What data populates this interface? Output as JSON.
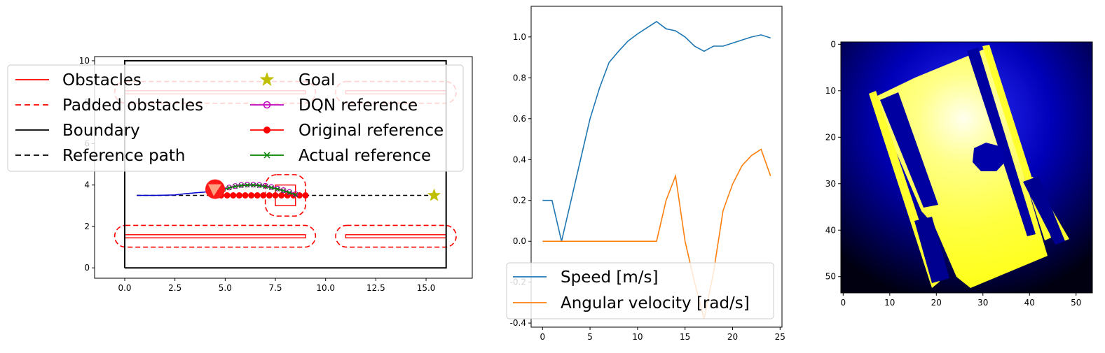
{
  "chart_data": [
    {
      "type": "line",
      "xlim": [
        -1.5,
        17.3
      ],
      "ylim": [
        -0.5,
        10.2
      ],
      "x_ticks": [
        "0.0",
        "2.5",
        "5.0",
        "7.5",
        "10.0",
        "12.5",
        "15.0"
      ],
      "y_ticks": [
        "0",
        "2",
        "4",
        "6",
        "8",
        "10"
      ],
      "boundary": [
        [
          0,
          0
        ],
        [
          16,
          0
        ],
        [
          16,
          10
        ],
        [
          0,
          10
        ],
        [
          0,
          0
        ]
      ],
      "obstacles": [
        {
          "x0": 0,
          "x1": 9,
          "y0": 1.45,
          "y1": 1.6
        },
        {
          "x0": 11,
          "x1": 16,
          "y0": 1.45,
          "y1": 1.6
        },
        {
          "x0": 0,
          "x1": 9,
          "y0": 8.4,
          "y1": 8.55
        },
        {
          "x0": 11,
          "x1": 16,
          "y0": 8.4,
          "y1": 8.55
        },
        {
          "x0": 7.5,
          "x1": 8.5,
          "y0": 3.0,
          "y1": 4.0
        }
      ],
      "padded_obstacles": [
        {
          "x0": -0.5,
          "x1": 9.5,
          "y0": 1.0,
          "y1": 2.05
        },
        {
          "x0": 10.5,
          "x1": 16.5,
          "y0": 1.0,
          "y1": 2.05
        },
        {
          "x0": -0.5,
          "x1": 9.5,
          "y0": 7.95,
          "y1": 9.0
        },
        {
          "x0": 10.5,
          "x1": 16.5,
          "y0": 7.95,
          "y1": 9.0
        },
        {
          "x0": 7.0,
          "x1": 9.0,
          "y0": 2.5,
          "y1": 4.5
        }
      ],
      "reference_path": [
        [
          0.6,
          3.5
        ],
        [
          15.4,
          3.5
        ]
      ],
      "goal": [
        15.4,
        3.5
      ],
      "robot": {
        "x": 4.5,
        "y": 3.8
      },
      "trajectory": [
        [
          0.6,
          3.5
        ],
        [
          1.5,
          3.5
        ],
        [
          2.5,
          3.52
        ],
        [
          3.0,
          3.58
        ],
        [
          3.5,
          3.62
        ],
        [
          4.0,
          3.66
        ],
        [
          4.5,
          3.75
        ]
      ],
      "dqn_reference": [
        [
          4.6,
          3.72
        ],
        [
          4.9,
          3.8
        ],
        [
          5.2,
          3.88
        ],
        [
          5.5,
          3.95
        ],
        [
          5.8,
          4.0
        ],
        [
          6.1,
          4.02
        ],
        [
          6.4,
          4.02
        ],
        [
          6.7,
          4.0
        ],
        [
          7.0,
          3.96
        ],
        [
          7.3,
          3.9
        ],
        [
          7.6,
          3.83
        ],
        [
          7.9,
          3.75
        ],
        [
          8.2,
          3.66
        ],
        [
          8.5,
          3.56
        ]
      ],
      "actual_reference": [
        [
          4.6,
          3.7
        ],
        [
          4.9,
          3.78
        ],
        [
          5.2,
          3.86
        ],
        [
          5.5,
          3.93
        ],
        [
          5.8,
          3.97
        ],
        [
          6.1,
          3.99
        ],
        [
          6.4,
          3.99
        ],
        [
          6.7,
          3.97
        ],
        [
          7.0,
          3.93
        ],
        [
          7.3,
          3.87
        ],
        [
          7.6,
          3.8
        ],
        [
          7.9,
          3.72
        ],
        [
          8.2,
          3.63
        ],
        [
          8.5,
          3.53
        ]
      ],
      "original_reference": [
        [
          4.8,
          3.5
        ],
        [
          5.1,
          3.5
        ],
        [
          5.4,
          3.5
        ],
        [
          5.7,
          3.5
        ],
        [
          6.0,
          3.5
        ],
        [
          6.3,
          3.5
        ],
        [
          6.6,
          3.5
        ],
        [
          6.9,
          3.5
        ],
        [
          7.2,
          3.5
        ],
        [
          7.5,
          3.5
        ],
        [
          7.8,
          3.5
        ],
        [
          8.1,
          3.5
        ],
        [
          8.4,
          3.5
        ],
        [
          8.7,
          3.5
        ],
        [
          9.0,
          3.5
        ]
      ],
      "legend": {
        "placement": "upper-center",
        "col1": [
          "Obstacles",
          "Padded obstacles",
          "Boundary",
          "Reference path"
        ],
        "col2": [
          "Goal",
          "DQN reference",
          "Original reference",
          "Actual reference"
        ]
      }
    },
    {
      "type": "line",
      "x": [
        0,
        1,
        2,
        3,
        4,
        5,
        6,
        7,
        8,
        9,
        10,
        11,
        12,
        13,
        14,
        15,
        16,
        17,
        18,
        19,
        20,
        21,
        22,
        23,
        24
      ],
      "xlim": [
        -1.2,
        25.2
      ],
      "ylim": [
        -0.42,
        1.15
      ],
      "x_ticks": [
        "0",
        "5",
        "10",
        "15",
        "20",
        "25"
      ],
      "y_ticks": [
        "-0.4",
        "-0.2",
        "0.0",
        "0.2",
        "0.4",
        "0.6",
        "0.8",
        "1.0"
      ],
      "series": [
        {
          "name": "Speed [m/s]",
          "color": "#1f77b4",
          "values": [
            0.2,
            0.2,
            0.0,
            0.2,
            0.4,
            0.6,
            0.75,
            0.875,
            0.93,
            0.98,
            1.015,
            1.045,
            1.075,
            1.04,
            1.03,
            1.0,
            0.955,
            0.93,
            0.955,
            0.955,
            0.97,
            0.985,
            1.0,
            1.01,
            0.995
          ]
        },
        {
          "name": "Angular velocity [rad/s]",
          "color": "#ff7f0e",
          "values": [
            0.0,
            0.0,
            0.0,
            0.0,
            0.0,
            0.0,
            0.0,
            0.0,
            0.0,
            0.0,
            0.0,
            0.0,
            0.0,
            0.2,
            0.32,
            0.0,
            -0.2,
            -0.38,
            -0.15,
            0.15,
            0.28,
            0.37,
            0.42,
            0.45,
            0.32
          ]
        }
      ],
      "legend": {
        "placement": "lower-left"
      }
    },
    {
      "type": "heatmap",
      "xlim": [
        -0.5,
        53.5
      ],
      "ylim": [
        53.5,
        -0.5
      ],
      "x_ticks": [
        "0",
        "10",
        "20",
        "30",
        "40",
        "50"
      ],
      "y_ticks": [
        "0",
        "10",
        "20",
        "30",
        "40",
        "50"
      ]
    }
  ]
}
